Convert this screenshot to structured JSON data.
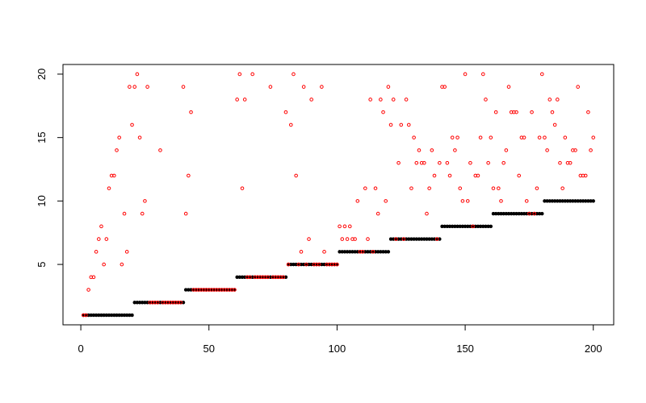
{
  "chart_data": {
    "type": "scatter",
    "x": [
      1,
      2,
      3,
      4,
      5,
      6,
      7,
      8,
      9,
      10,
      11,
      12,
      13,
      14,
      15,
      16,
      17,
      18,
      19,
      20,
      21,
      22,
      23,
      24,
      25,
      26,
      27,
      28,
      29,
      30,
      31,
      32,
      33,
      34,
      35,
      36,
      37,
      38,
      39,
      40,
      41,
      42,
      43,
      44,
      45,
      46,
      47,
      48,
      49,
      50,
      51,
      52,
      53,
      54,
      55,
      56,
      57,
      58,
      59,
      60,
      61,
      62,
      63,
      64,
      65,
      66,
      67,
      68,
      69,
      70,
      71,
      72,
      73,
      74,
      75,
      76,
      77,
      78,
      79,
      80,
      81,
      82,
      83,
      84,
      85,
      86,
      87,
      88,
      89,
      90,
      91,
      92,
      93,
      94,
      95,
      96,
      97,
      98,
      99,
      100,
      101,
      102,
      103,
      104,
      105,
      106,
      107,
      108,
      109,
      110,
      111,
      112,
      113,
      114,
      115,
      116,
      117,
      118,
      119,
      120,
      121,
      122,
      123,
      124,
      125,
      126,
      127,
      128,
      129,
      130,
      131,
      132,
      133,
      134,
      135,
      136,
      137,
      138,
      139,
      140,
      141,
      142,
      143,
      144,
      145,
      146,
      147,
      148,
      149,
      150,
      151,
      152,
      153,
      154,
      155,
      156,
      157,
      158,
      159,
      160,
      161,
      162,
      163,
      164,
      165,
      166,
      167,
      168,
      169,
      170,
      171,
      172,
      173,
      174,
      175,
      176,
      177,
      178,
      179,
      180,
      181,
      182,
      183,
      184,
      185,
      186,
      187,
      188,
      189,
      190,
      191,
      192,
      193,
      194,
      195,
      196,
      197,
      198,
      199,
      200
    ],
    "series": [
      {
        "color": "#000000",
        "marker": "filled",
        "values": [
          1,
          1,
          1,
          1,
          1,
          1,
          1,
          1,
          1,
          1,
          1,
          1,
          1,
          1,
          1,
          1,
          1,
          1,
          1,
          1,
          2,
          2,
          2,
          2,
          2,
          2,
          2,
          2,
          2,
          2,
          2,
          2,
          2,
          2,
          2,
          2,
          2,
          2,
          2,
          2,
          3,
          3,
          3,
          3,
          3,
          3,
          3,
          3,
          3,
          3,
          3,
          3,
          3,
          3,
          3,
          3,
          3,
          3,
          3,
          3,
          4,
          4,
          4,
          4,
          4,
          4,
          4,
          4,
          4,
          4,
          4,
          4,
          4,
          4,
          4,
          4,
          4,
          4,
          4,
          4,
          5,
          5,
          5,
          5,
          5,
          5,
          5,
          5,
          5,
          5,
          5,
          5,
          5,
          5,
          5,
          5,
          5,
          5,
          5,
          5,
          6,
          6,
          6,
          6,
          6,
          6,
          6,
          6,
          6,
          6,
          6,
          6,
          6,
          6,
          6,
          6,
          6,
          6,
          6,
          6,
          7,
          7,
          7,
          7,
          7,
          7,
          7,
          7,
          7,
          7,
          7,
          7,
          7,
          7,
          7,
          7,
          7,
          7,
          7,
          7,
          8,
          8,
          8,
          8,
          8,
          8,
          8,
          8,
          8,
          8,
          8,
          8,
          8,
          8,
          8,
          8,
          8,
          8,
          8,
          8,
          9,
          9,
          9,
          9,
          9,
          9,
          9,
          9,
          9,
          9,
          9,
          9,
          9,
          9,
          9,
          9,
          9,
          9,
          9,
          9,
          10,
          10,
          10,
          10,
          10,
          10,
          10,
          10,
          10,
          10,
          10,
          10,
          10,
          10,
          10,
          10,
          10,
          10,
          10,
          10
        ]
      },
      {
        "color": "#ff0000",
        "marker": "open",
        "values": [
          1,
          1,
          3,
          4,
          4,
          6,
          7,
          8,
          5,
          7,
          11,
          12,
          12,
          14,
          15,
          5,
          9,
          6,
          19,
          16,
          19,
          20,
          15,
          9,
          10,
          19,
          2,
          2,
          2,
          2,
          14,
          2,
          2,
          2,
          2,
          2,
          2,
          2,
          2,
          19,
          9,
          12,
          17,
          3,
          3,
          3,
          3,
          3,
          3,
          3,
          3,
          3,
          3,
          3,
          3,
          3,
          3,
          3,
          3,
          3,
          18,
          20,
          11,
          18,
          4,
          4,
          20,
          4,
          4,
          4,
          4,
          4,
          4,
          19,
          4,
          4,
          4,
          4,
          4,
          17,
          5,
          16,
          20,
          12,
          5,
          6,
          19,
          5,
          7,
          18,
          5,
          5,
          5,
          19,
          6,
          5,
          5,
          5,
          5,
          5,
          8,
          7,
          8,
          7,
          8,
          7,
          7,
          10,
          6,
          6,
          11,
          7,
          18,
          6,
          11,
          9,
          18,
          17,
          10,
          19,
          16,
          18,
          7,
          13,
          16,
          7,
          18,
          16,
          11,
          15,
          13,
          14,
          13,
          13,
          9,
          11,
          14,
          12,
          7,
          13,
          19,
          19,
          13,
          12,
          15,
          14,
          15,
          11,
          10,
          20,
          10,
          13,
          8,
          12,
          12,
          15,
          20,
          18,
          13,
          15,
          11,
          17,
          11,
          10,
          13,
          14,
          19,
          17,
          17,
          17,
          12,
          15,
          15,
          10,
          9,
          17,
          9,
          11,
          15,
          20,
          15,
          14,
          18,
          17,
          16,
          18,
          13,
          11,
          15,
          13,
          13,
          14,
          14,
          19,
          12,
          12,
          12,
          17,
          14,
          15
        ]
      }
    ],
    "xlim": [
      -6.96,
      207.96
    ],
    "ylim": [
      0.24,
      20.76
    ],
    "xticks": [
      0,
      50,
      100,
      150,
      200
    ],
    "yticks": [
      5,
      10,
      15,
      20
    ]
  }
}
